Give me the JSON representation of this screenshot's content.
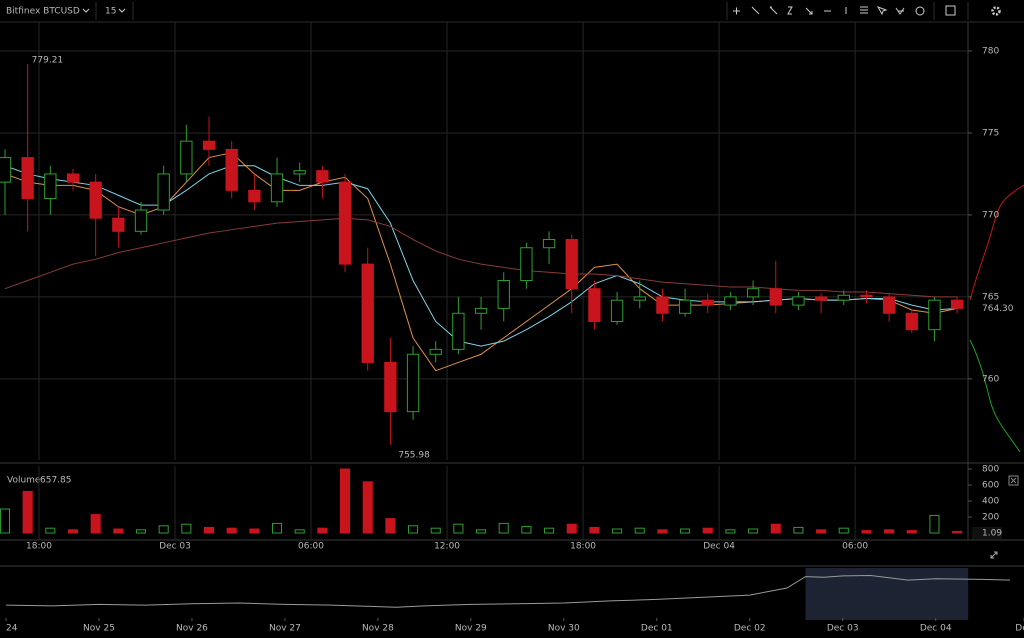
{
  "toolbar": {
    "symbol": "Bitfinex BTCUSD",
    "interval": "15"
  },
  "chart_data": [
    {
      "type": "candlestick",
      "x": [
        16.5,
        17.5,
        18.5,
        19.5,
        20.5,
        21.5,
        22.5,
        23.5,
        24.5,
        25.5,
        26.5,
        27.5,
        28.5,
        29.5,
        30.5,
        31.5,
        32.5,
        33.5,
        34.5,
        35.5,
        36.5,
        37.5,
        38.5,
        39.5,
        40.5,
        41.5,
        42.5,
        43.5,
        44.5,
        45.5,
        46.5,
        47.5,
        48.5,
        49.5,
        50.5,
        51.5,
        52.5,
        53.5,
        54.5,
        55.5,
        56.5,
        57.5,
        58.5
      ],
      "open": [
        772,
        773.5,
        771,
        772.5,
        772,
        769.8,
        769,
        770.3,
        772.5,
        774.5,
        774,
        771.5,
        770.8,
        772.5,
        772.7,
        772,
        767,
        761,
        758,
        761.5,
        761.8,
        764,
        764.3,
        766,
        768,
        768.5,
        765.5,
        763.5,
        764.8,
        765,
        764,
        764.8,
        764.5,
        765,
        765.5,
        764.5,
        765,
        764.8,
        765.1,
        765,
        764,
        763,
        764.8
      ],
      "high": [
        774,
        779.21,
        773,
        772.8,
        772.5,
        770.5,
        770.8,
        773,
        775.5,
        776,
        774.5,
        772.5,
        773.5,
        773.2,
        773,
        772.5,
        768,
        762.5,
        762,
        762.3,
        765,
        765,
        766.5,
        768.3,
        769,
        768.8,
        766,
        765.3,
        766,
        765.5,
        765.5,
        765.2,
        765.3,
        766,
        767.2,
        765.3,
        765.2,
        765.4,
        765.4,
        765.2,
        764.2,
        765,
        765
      ],
      "low": [
        770,
        769,
        770,
        771.5,
        767.5,
        768,
        768.8,
        770,
        772,
        773,
        771,
        770.3,
        770.5,
        772,
        771,
        766.5,
        760.5,
        755.98,
        757.5,
        761,
        761.5,
        763,
        763.5,
        765.5,
        767,
        764,
        763,
        763.3,
        764.3,
        763.5,
        763.8,
        764,
        764.2,
        764.5,
        764,
        764.2,
        764,
        764.5,
        764.6,
        763.5,
        762.8,
        762.3,
        764
      ],
      "close": [
        773.5,
        771,
        772.5,
        772,
        769.8,
        769,
        770.3,
        772.5,
        774.5,
        774,
        771.5,
        770.8,
        772.5,
        772.7,
        772,
        767,
        761,
        758,
        761.5,
        761.8,
        764,
        764.3,
        766,
        768,
        768.5,
        765.5,
        763.5,
        764.8,
        765,
        764,
        764.8,
        764.5,
        765,
        765.5,
        764.5,
        765,
        764.8,
        765.1,
        765,
        764,
        763,
        764.8,
        764.3
      ],
      "up_color": "#2f9e2f",
      "down_color": "#c8141c",
      "series": [
        {
          "color": "#e0914a",
          "values": [
            772.5,
            772,
            771.8,
            771.8,
            771.5,
            770.5,
            770,
            770.5,
            772,
            773.5,
            773.8,
            772.5,
            771.5,
            771.5,
            772,
            772.3,
            771,
            767,
            762.5,
            760.5,
            761,
            761.5,
            762.5,
            763.5,
            764.5,
            765.5,
            766.8,
            767,
            765.5,
            764.5,
            764.5,
            764.5,
            764.6,
            764.7,
            764.8,
            764.9,
            764.8,
            764.8,
            764.9,
            764.8,
            764.2,
            764,
            764.3
          ]
        },
        {
          "color": "#7fd3e6",
          "values": [
            773,
            772.5,
            772.2,
            772,
            771.8,
            771.2,
            770.6,
            770.6,
            771.5,
            772.5,
            773,
            773,
            772.3,
            771.8,
            771.8,
            772,
            771.6,
            769.5,
            766,
            763.5,
            762.3,
            762,
            762.3,
            763,
            763.8,
            764.7,
            765.8,
            766.3,
            765.8,
            765,
            764.8,
            764.7,
            764.7,
            764.7,
            764.8,
            764.9,
            764.8,
            764.8,
            764.9,
            764.9,
            764.5,
            764.2,
            764.3
          ]
        },
        {
          "color": "#8a3a3a",
          "values": [
            765.5,
            766,
            766.5,
            767,
            767.3,
            767.7,
            768,
            768.3,
            768.6,
            768.9,
            769.1,
            769.3,
            769.5,
            769.6,
            769.7,
            769.8,
            769.7,
            769.3,
            768.5,
            767.8,
            767.3,
            767,
            766.8,
            766.6,
            766.5,
            766.4,
            766.4,
            766.3,
            766.1,
            765.9,
            765.8,
            765.7,
            765.6,
            765.6,
            765.5,
            765.4,
            765.4,
            765.3,
            765.3,
            765.2,
            765.1,
            765,
            765
          ]
        }
      ],
      "last_price": "764.30",
      "xlim": [
        16.28,
        58.98
      ],
      "ylim": [
        755.05,
        781.77
      ],
      "xticks": [
        {
          "value": 18,
          "label": "18:00"
        },
        {
          "value": 24,
          "label": "Dec 03"
        },
        {
          "value": 30,
          "label": "06:00"
        },
        {
          "value": 36,
          "label": "12:00"
        },
        {
          "value": 42,
          "label": "18:00"
        },
        {
          "value": 48,
          "label": "Dec 04"
        },
        {
          "value": 54,
          "label": "06:00"
        }
      ],
      "yticks": [
        760,
        765,
        770,
        775,
        780
      ],
      "grid": true
    },
    {
      "type": "bar",
      "label": "Volume",
      "hover_value": 657.85,
      "last_value": 1.09,
      "values": [
        300,
        520,
        60,
        40,
        230,
        50,
        40,
        90,
        110,
        70,
        60,
        50,
        120,
        40,
        60,
        800,
        640,
        180,
        90,
        60,
        110,
        40,
        120,
        80,
        60,
        110,
        70,
        50,
        60,
        40,
        50,
        60,
        40,
        50,
        110,
        70,
        40,
        60,
        30,
        40,
        30,
        220,
        20
      ],
      "ylim": [
        0,
        812.5
      ],
      "yticks": [
        200,
        400,
        600,
        800
      ]
    },
    {
      "type": "line",
      "x": [
        0,
        0.5,
        1,
        1.5,
        2,
        2.5,
        3,
        3.5,
        4,
        4.2,
        4.5,
        5,
        5.5,
        6,
        6.5,
        7,
        7.5,
        8,
        8.4,
        8.6,
        8.8,
        9,
        9.3,
        9.7,
        10,
        10.5,
        10.8
      ],
      "values": [
        738,
        737,
        739,
        738,
        740,
        741,
        739,
        738,
        736,
        735,
        737,
        739,
        740,
        741,
        744,
        746,
        749,
        752,
        762,
        778,
        777,
        779,
        779.5,
        773,
        775,
        774,
        773
      ],
      "color": "#9a9a9a",
      "selection": [
        8.6,
        10.35
      ],
      "xlim": [
        -0.065,
        10.95
      ],
      "ylim": [
        720,
        790
      ],
      "xticks": [
        {
          "value": 0,
          "label": "24"
        },
        {
          "value": 1,
          "label": "Nov 25"
        },
        {
          "value": 2,
          "label": "Nov 26"
        },
        {
          "value": 3,
          "label": "Nov 27"
        },
        {
          "value": 4,
          "label": "Nov 28"
        },
        {
          "value": 5,
          "label": "Nov 29"
        },
        {
          "value": 6,
          "label": "Nov 30"
        },
        {
          "value": 7,
          "label": "Dec 01"
        },
        {
          "value": 8,
          "label": "Dec 02"
        },
        {
          "value": 9,
          "label": "Dec 03"
        },
        {
          "value": 10,
          "label": "Dec 04"
        },
        {
          "value": 10.95,
          "label": "Dec"
        }
      ]
    }
  ]
}
